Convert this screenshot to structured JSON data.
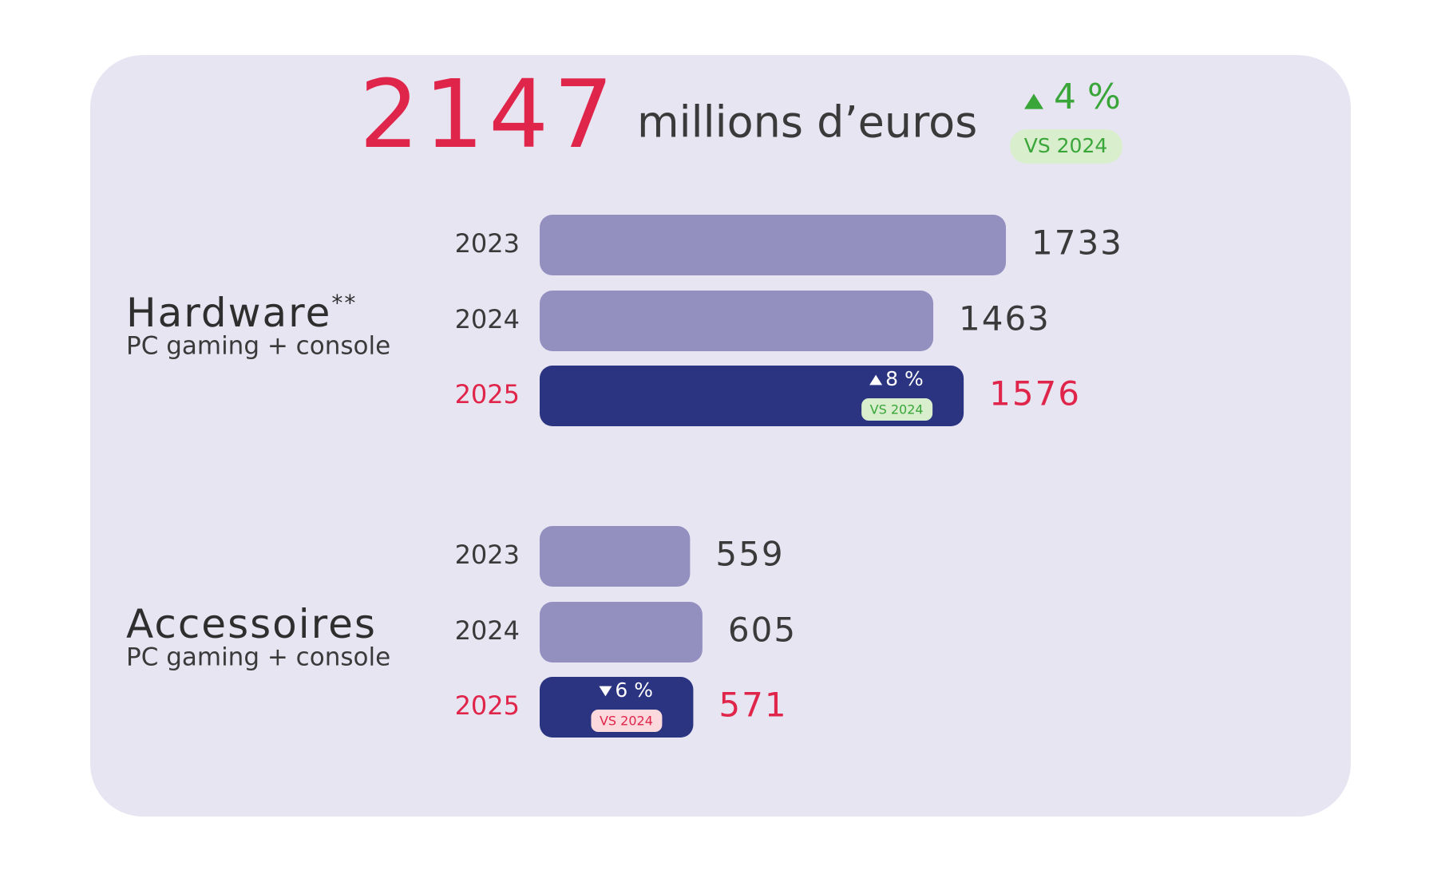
{
  "headline": {
    "value": 2147,
    "unit": "millions d’euros",
    "color": "#e0254a",
    "change": {
      "value": 4,
      "label": "4 %",
      "versus": "VS 2024",
      "color": "#3aa63a",
      "pill_color": "#d8eecd"
    }
  },
  "chart_data": [
    {
      "type": "bar",
      "orientation": "horizontal",
      "title": "Hardware",
      "title_note": "**",
      "subtitle": "PC gaming + console",
      "categories": [
        "2023",
        "2024",
        "2025"
      ],
      "values": [
        1733,
        1463,
        1576
      ],
      "colors": [
        "#9390c0",
        "#9390c0",
        "#2b3480"
      ],
      "label_colors": [
        "#3a3a3a",
        "#3a3a3a",
        "#e0254a"
      ],
      "change": {
        "value": 8,
        "label": "8 %",
        "versus": "VS 2024",
        "pill_color": "#d8eecd",
        "pill_text_color": "#3aa63a"
      }
    },
    {
      "type": "bar",
      "orientation": "horizontal",
      "title": "Accessoires",
      "subtitle": "PC gaming + console",
      "categories": [
        "2023",
        "2024",
        "2025"
      ],
      "values": [
        559,
        605,
        571
      ],
      "colors": [
        "#9390c0",
        "#9390c0",
        "#2b3480"
      ],
      "label_colors": [
        "#3a3a3a",
        "#3a3a3a",
        "#e0254a"
      ],
      "change": {
        "value": -6,
        "label": "6 %",
        "versus": "VS 2024",
        "pill_color": "#fbd9dc",
        "pill_text_color": "#e0254a"
      }
    }
  ]
}
